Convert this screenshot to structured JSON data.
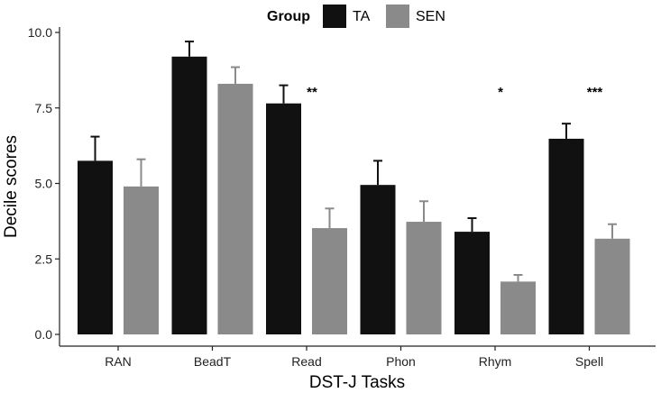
{
  "chart_data": {
    "type": "bar",
    "xlabel": "DST-J Tasks",
    "ylabel": "Decile scores",
    "ylim": [
      0,
      10
    ],
    "yticks": [
      "0.0",
      "2.5",
      "5.0",
      "7.5",
      "10.0"
    ],
    "grid": false,
    "legend": {
      "title": "Group",
      "placement": "top"
    },
    "categories": [
      "RAN",
      "BeadT",
      "Read",
      "Phon",
      "Rhym",
      "Spell"
    ],
    "series": [
      {
        "name": "TA",
        "color": "#111111",
        "values": [
          5.75,
          9.2,
          7.65,
          4.95,
          3.4,
          6.48
        ],
        "errors": [
          0.8,
          0.5,
          0.6,
          0.8,
          0.45,
          0.5
        ]
      },
      {
        "name": "SEN",
        "color": "#8a8a8a",
        "values": [
          4.9,
          8.3,
          3.52,
          3.73,
          1.75,
          3.17
        ],
        "errors": [
          0.9,
          0.55,
          0.65,
          0.68,
          0.22,
          0.48
        ]
      }
    ],
    "annotations": [
      {
        "category": "Read",
        "text": "**"
      },
      {
        "category": "Rhym",
        "text": "*"
      },
      {
        "category": "Spell",
        "text": "***"
      }
    ]
  }
}
